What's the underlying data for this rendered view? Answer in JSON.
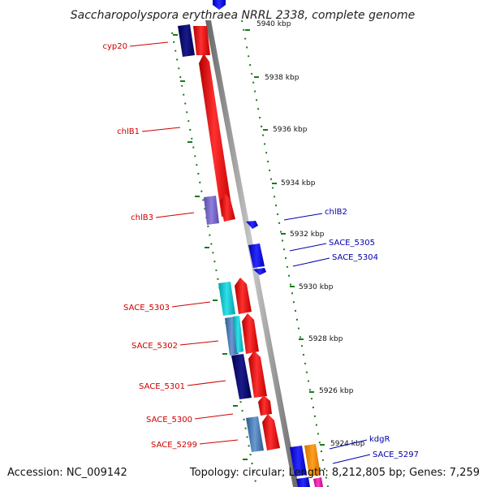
{
  "title": "Saccharopolyspora erythraea NRRL 2338, complete genome",
  "footer": {
    "accession": "Accession: NC_009142",
    "stats": "Topology: circular; Length: 8,212,805 bp; Genes: 7,259"
  },
  "colors": {
    "backbone": "#888888",
    "tick": "#1a7a1a",
    "forward_label": "#cc0000",
    "reverse_label": "#0000aa"
  },
  "scale": {
    "unit": "kbp",
    "ticks": [
      {
        "label": "5940 kbp"
      },
      {
        "label": "5938 kbp"
      },
      {
        "label": "5936 kbp"
      },
      {
        "label": "5934 kbp"
      },
      {
        "label": "5932 kbp"
      },
      {
        "label": "5930 kbp"
      },
      {
        "label": "5928 kbp"
      },
      {
        "label": "5926 kbp"
      },
      {
        "label": "5924 kbp"
      }
    ]
  },
  "genes_left": [
    {
      "label": "cyp20"
    },
    {
      "label": "chlB1"
    },
    {
      "label": "chlB3"
    },
    {
      "label": "SACE_5303"
    },
    {
      "label": "SACE_5302"
    },
    {
      "label": "SACE_5301"
    },
    {
      "label": "SACE_5300"
    },
    {
      "label": "SACE_5299"
    }
  ],
  "genes_right": [
    {
      "label": "chlB2"
    },
    {
      "label": "SACE_5305"
    },
    {
      "label": "SACE_5304"
    },
    {
      "label": "kdgR"
    },
    {
      "label": "SACE_5297"
    }
  ]
}
